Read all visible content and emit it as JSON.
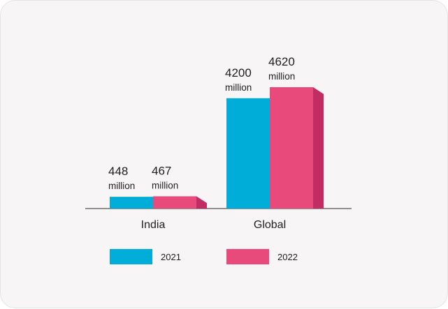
{
  "chart_data": {
    "type": "bar",
    "categories": [
      "India",
      "Global"
    ],
    "series": [
      {
        "name": "2021",
        "values": [
          448,
          4200
        ],
        "labels": [
          "448",
          "4200"
        ],
        "color": "#00acd8"
      },
      {
        "name": "2022",
        "values": [
          467,
          4620
        ],
        "labels": [
          "467",
          "4620"
        ],
        "color": "#e84a7c",
        "side_color": "#c12c63"
      }
    ],
    "value_unit": "million",
    "title": "",
    "xlabel": "",
    "ylabel": "",
    "grid": false,
    "legend_position": "bottom"
  }
}
